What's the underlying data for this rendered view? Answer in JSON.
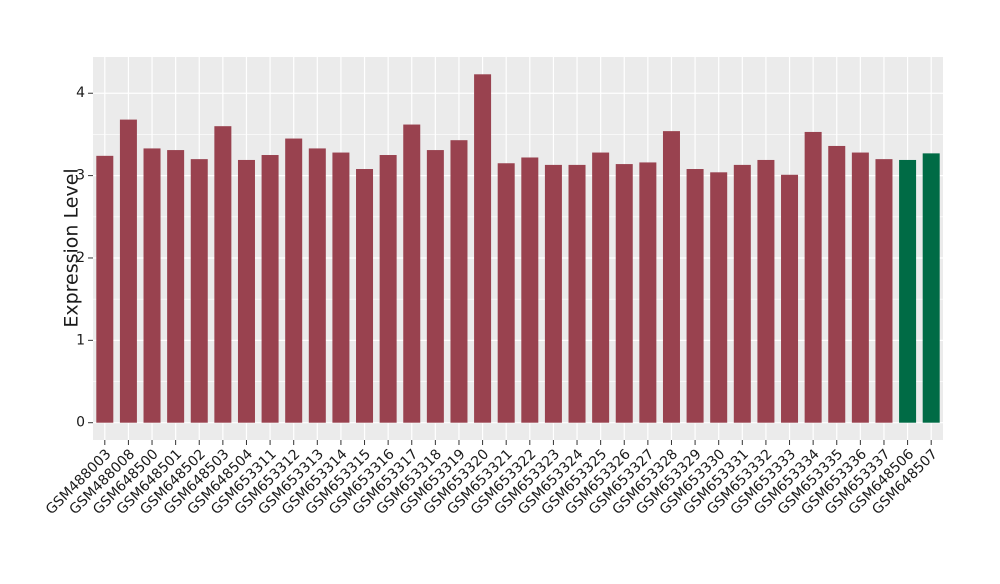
{
  "chart_data": {
    "type": "bar",
    "y_label": "Expression Level",
    "categories": [
      "GSM488003",
      "GSM488008",
      "GSM648500",
      "GSM648501",
      "GSM648502",
      "GSM648503",
      "GSM648504",
      "GSM653311",
      "GSM653312",
      "GSM653313",
      "GSM653314",
      "GSM653315",
      "GSM653316",
      "GSM653317",
      "GSM653318",
      "GSM653319",
      "GSM653320",
      "GSM653321",
      "GSM653322",
      "GSM653323",
      "GSM653324",
      "GSM653325",
      "GSM653326",
      "GSM653327",
      "GSM653328",
      "GSM653329",
      "GSM653330",
      "GSM653331",
      "GSM653332",
      "GSM653333",
      "GSM653334",
      "GSM653335",
      "GSM653336",
      "GSM653337",
      "GSM648506",
      "GSM648507"
    ],
    "values": [
      3.24,
      3.68,
      3.33,
      3.31,
      3.2,
      3.6,
      3.19,
      3.25,
      3.45,
      3.33,
      3.28,
      3.08,
      3.25,
      3.62,
      3.31,
      3.43,
      4.23,
      3.15,
      3.22,
      3.13,
      3.13,
      3.28,
      3.14,
      3.16,
      3.54,
      3.08,
      3.04,
      3.13,
      3.19,
      3.01,
      3.53,
      3.36,
      3.28,
      3.2,
      3.19,
      3.27
    ],
    "colors": [
      "#99424f",
      "#99424f",
      "#99424f",
      "#99424f",
      "#99424f",
      "#99424f",
      "#99424f",
      "#99424f",
      "#99424f",
      "#99424f",
      "#99424f",
      "#99424f",
      "#99424f",
      "#99424f",
      "#99424f",
      "#99424f",
      "#99424f",
      "#99424f",
      "#99424f",
      "#99424f",
      "#99424f",
      "#99424f",
      "#99424f",
      "#99424f",
      "#99424f",
      "#99424f",
      "#99424f",
      "#99424f",
      "#99424f",
      "#99424f",
      "#99424f",
      "#99424f",
      "#99424f",
      "#99424f",
      "#006b45",
      "#006b45"
    ],
    "ylim": [
      -0.21,
      4.44
    ],
    "yticks": [
      0,
      1,
      2,
      3,
      4
    ],
    "grid": true
  }
}
